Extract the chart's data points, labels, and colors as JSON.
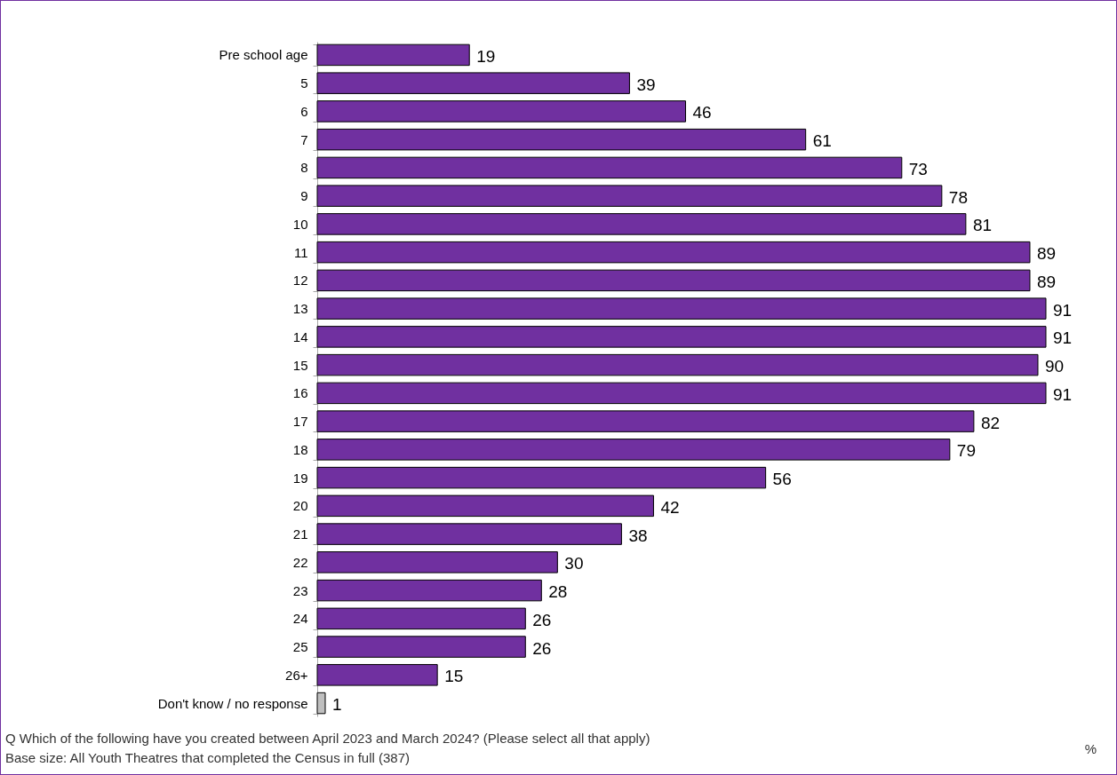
{
  "chart_data": {
    "type": "bar",
    "orientation": "horizontal",
    "data_labels": true,
    "categories": [
      "Pre school age",
      "5",
      "6",
      "7",
      "8",
      "9",
      "10",
      "11",
      "12",
      "13",
      "14",
      "15",
      "16",
      "17",
      "18",
      "19",
      "20",
      "21",
      "22",
      "23",
      "24",
      "25",
      "26+",
      "Don't know / no response"
    ],
    "values": [
      19,
      39,
      46,
      61,
      73,
      78,
      81,
      89,
      89,
      91,
      91,
      90,
      91,
      82,
      79,
      56,
      42,
      38,
      30,
      28,
      26,
      26,
      15,
      1
    ],
    "colors": [
      "#7030a0",
      "#7030a0",
      "#7030a0",
      "#7030a0",
      "#7030a0",
      "#7030a0",
      "#7030a0",
      "#7030a0",
      "#7030a0",
      "#7030a0",
      "#7030a0",
      "#7030a0",
      "#7030a0",
      "#7030a0",
      "#7030a0",
      "#7030a0",
      "#7030a0",
      "#7030a0",
      "#7030a0",
      "#7030a0",
      "#7030a0",
      "#7030a0",
      "#7030a0",
      "#bfbfbf"
    ],
    "annotations": [
      "Q Which of the following have you created between April 2023 and March 2024? (Please select all that apply)",
      "Base size: All Youth Theatres that completed the Census in full (387)",
      "%"
    ]
  }
}
